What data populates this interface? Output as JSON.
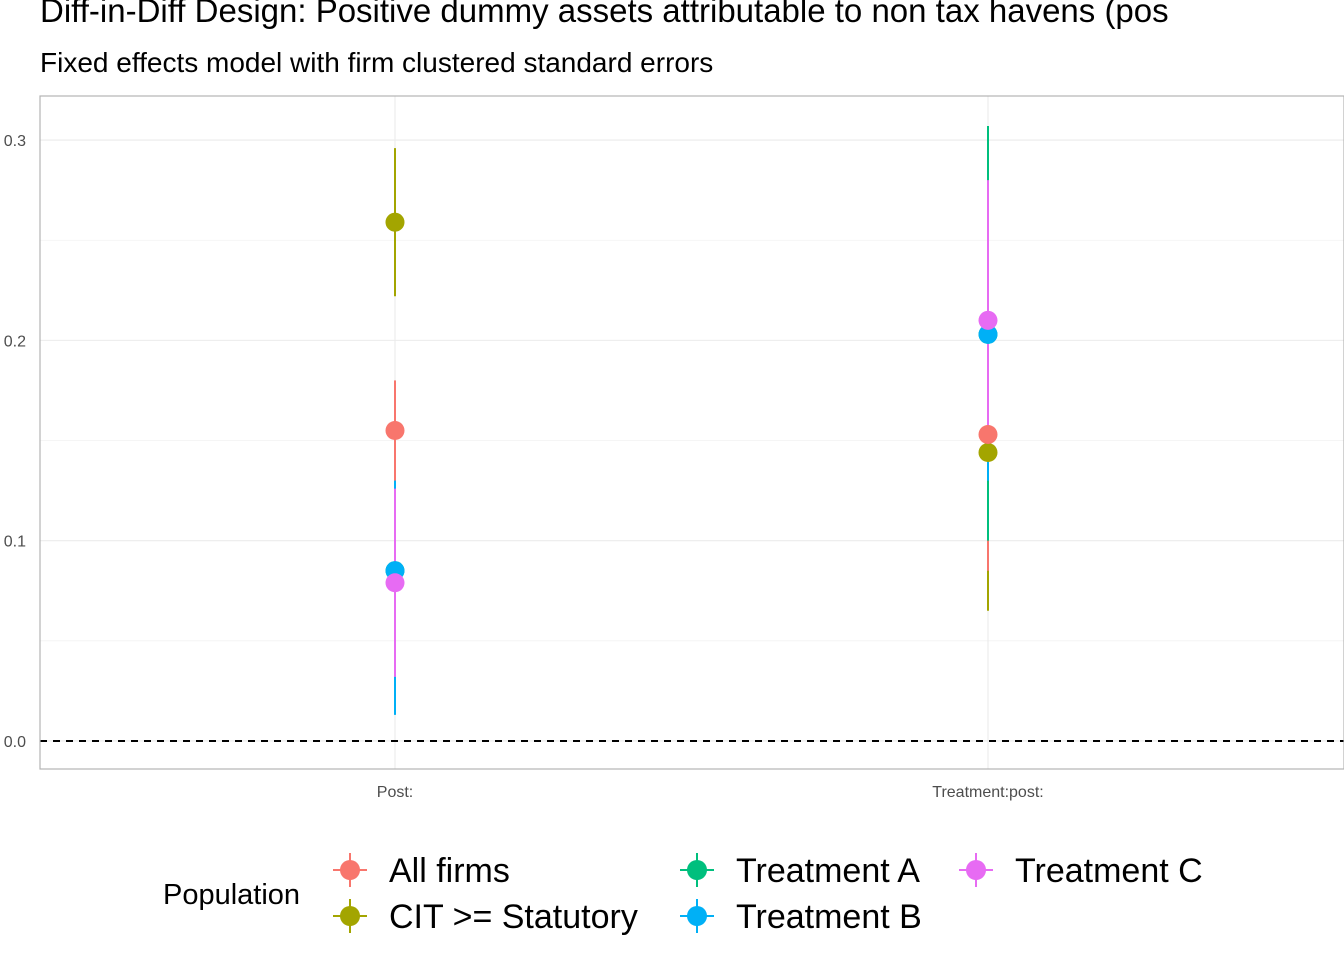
{
  "chart_data": {
    "type": "scatter",
    "title": "Diff-in-Diff Design: Positive dummy assets attributable to non tax havens (pos",
    "subtitle": "Fixed effects model with firm clustered standard errors",
    "categories": [
      "Post:",
      "Treatment:post:"
    ],
    "ylim": [
      -0.014,
      0.322
    ],
    "yticks": [
      0.0,
      0.1,
      0.2,
      0.3
    ],
    "ytick_labels": [
      "0.0",
      "0.1",
      "0.2",
      "0.3"
    ],
    "reference_line": 0.0,
    "grid": true,
    "legend": {
      "title": "Population",
      "position": "bottom"
    },
    "series": [
      {
        "name": "All firms",
        "color": "#F8766D",
        "points": [
          {
            "category": "Post:",
            "estimate": 0.155,
            "low": 0.13,
            "high": 0.18
          },
          {
            "category": "Treatment:post:",
            "estimate": 0.153,
            "low": 0.085,
            "high": 0.221
          }
        ]
      },
      {
        "name": "CIT >= Statutory",
        "color": "#A3A500",
        "points": [
          {
            "category": "Post:",
            "estimate": 0.259,
            "low": 0.222,
            "high": 0.296
          },
          {
            "category": "Treatment:post:",
            "estimate": 0.144,
            "low": 0.065,
            "high": 0.223
          }
        ]
      },
      {
        "name": "Treatment A",
        "color": "#00BF7D",
        "points": [
          {
            "category": "Post:",
            "estimate": 0.085,
            "low": 0.015,
            "high": 0.155
          },
          {
            "category": "Treatment:post:",
            "estimate": 0.203,
            "low": 0.1,
            "high": 0.307
          }
        ]
      },
      {
        "name": "Treatment B",
        "color": "#00B0F6",
        "points": [
          {
            "category": "Post:",
            "estimate": 0.085,
            "low": 0.013,
            "high": 0.157
          },
          {
            "category": "Treatment:post:",
            "estimate": 0.203,
            "low": 0.13,
            "high": 0.276
          }
        ]
      },
      {
        "name": "Treatment C",
        "color": "#E76BF3",
        "points": [
          {
            "category": "Post:",
            "estimate": 0.079,
            "low": 0.032,
            "high": 0.126
          },
          {
            "category": "Treatment:post:",
            "estimate": 0.21,
            "low": 0.14,
            "high": 0.28
          }
        ]
      }
    ]
  }
}
